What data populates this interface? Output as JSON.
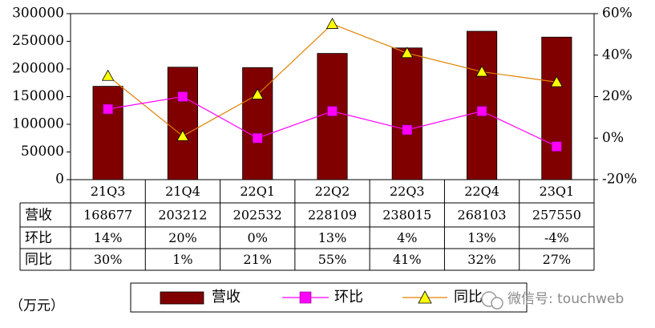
{
  "chart_data": {
    "type": "bar",
    "title": "",
    "categories": [
      "21Q3",
      "21Q4",
      "22Q1",
      "22Q2",
      "22Q3",
      "22Q4",
      "23Q1"
    ],
    "left_axis": {
      "ylim": [
        0,
        300000
      ],
      "ticks": [
        "300000",
        "250000",
        "200000",
        "150000",
        "100000",
        "50000",
        "0"
      ],
      "tick_values": [
        300000,
        250000,
        200000,
        150000,
        100000,
        50000,
        0
      ]
    },
    "right_axis": {
      "ylim": [
        -20,
        60
      ],
      "ticks": [
        "60%",
        "40%",
        "20%",
        "0%",
        "-20%"
      ],
      "tick_values": [
        60,
        40,
        20,
        0,
        -20
      ]
    },
    "series": [
      {
        "name": "营收",
        "type": "bar",
        "axis": "left",
        "color": "#800000",
        "values": [
          168677,
          203212,
          202532,
          228109,
          238015,
          268103,
          257550
        ],
        "labels": [
          "168677",
          "203212",
          "202532",
          "228109",
          "238015",
          "268103",
          "257550"
        ]
      },
      {
        "name": "环比",
        "type": "line",
        "axis": "right",
        "color": "#FF00FF",
        "marker": "square",
        "values": [
          14,
          20,
          0,
          13,
          4,
          13,
          -4
        ],
        "labels": [
          "14%",
          "20%",
          "0%",
          "13%",
          "4%",
          "13%",
          "-4%"
        ]
      },
      {
        "name": "同比",
        "type": "line",
        "axis": "right",
        "color": "#E08000",
        "marker": "triangle",
        "marker_color": "#FFFF00",
        "values": [
          30,
          1,
          21,
          55,
          41,
          32,
          27
        ],
        "labels": [
          "30%",
          "1%",
          "21%",
          "55%",
          "41%",
          "32%",
          "27%"
        ]
      }
    ],
    "grid": false,
    "legend_position": "bottom",
    "unit_note": "（万元）"
  },
  "watermark": "微信号: touchweb"
}
